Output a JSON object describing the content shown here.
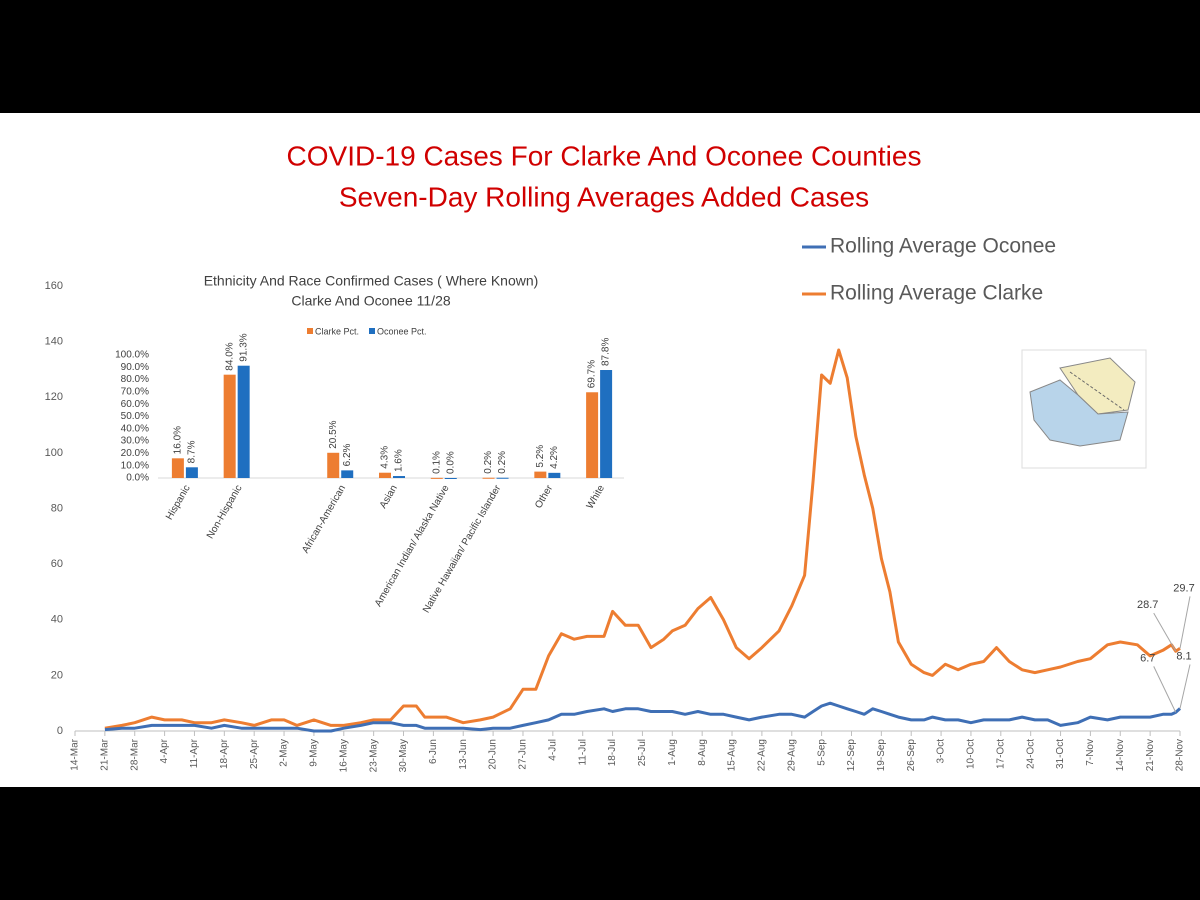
{
  "chart_data": [
    {
      "type": "line",
      "title": "COVID-19 Cases For Clarke And Oconee Counties",
      "subtitle": "Seven-Day Rolling Averages Added Cases",
      "x": [
        "21-Mar",
        "25-Mar",
        "28-Mar",
        "1-Apr",
        "4-Apr",
        "8-Apr",
        "11-Apr",
        "15-Apr",
        "18-Apr",
        "22-Apr",
        "25-Apr",
        "29-Apr",
        "2-May",
        "5-May",
        "9-May",
        "13-May",
        "16-May",
        "20-May",
        "23-May",
        "27-May",
        "30-May",
        "2-Jun",
        "4-Jun",
        "9-Jun",
        "13-Jun",
        "17-Jun",
        "20-Jun",
        "24-Jun",
        "27-Jun",
        "30-Jun",
        "3-Jul",
        "6-Jul",
        "9-Jul",
        "12-Jul",
        "16-Jul",
        "18-Jul",
        "21-Jul",
        "24-Jul",
        "27-Jul",
        "30-Jul",
        "1-Aug",
        "4-Aug",
        "7-Aug",
        "10-Aug",
        "13-Aug",
        "16-Aug",
        "19-Aug",
        "22-Aug",
        "26-Aug",
        "29-Aug",
        "1-Sep",
        "3-Sep",
        "5-Sep",
        "7-Sep",
        "9-Sep",
        "11-Sep",
        "13-Sep",
        "15-Sep",
        "17-Sep",
        "19-Sep",
        "21-Sep",
        "23-Sep",
        "26-Sep",
        "29-Sep",
        "1-Oct",
        "4-Oct",
        "7-Oct",
        "10-Oct",
        "13-Oct",
        "16-Oct",
        "19-Oct",
        "22-Oct",
        "25-Oct",
        "28-Oct",
        "31-Oct",
        "4-Nov",
        "7-Nov",
        "11-Nov",
        "14-Nov",
        "18-Nov",
        "21-Nov",
        "24-Nov",
        "26-Nov",
        "27-Nov",
        "28-Nov"
      ],
      "series": [
        {
          "name": "Rolling Average Oconee",
          "color": "#3f6fb5",
          "values": [
            0.5,
            1,
            1,
            2,
            2,
            2,
            2,
            1,
            2,
            1,
            1,
            1,
            1,
            1,
            0,
            0,
            1,
            2,
            3,
            3,
            2,
            2,
            1,
            1,
            1,
            0.5,
            1,
            1,
            2,
            3,
            4,
            6,
            6,
            7,
            8,
            7,
            8,
            8,
            7,
            7,
            7,
            6,
            7,
            6,
            6,
            5,
            4,
            5,
            6,
            6,
            5,
            7,
            9,
            10,
            9,
            8,
            7,
            6,
            8,
            7,
            6,
            5,
            4,
            4,
            5,
            4,
            4,
            3,
            4,
            4,
            4,
            5,
            4,
            4,
            2,
            3,
            5,
            4,
            5,
            5,
            5,
            6,
            6,
            6.7,
            8.1
          ],
          "value_labels": [
            null,
            null,
            null,
            null,
            null,
            null,
            null,
            null,
            null,
            null,
            null,
            null,
            null,
            null,
            null,
            null,
            null,
            null,
            null,
            null,
            null,
            null,
            null,
            null,
            null,
            null,
            null,
            null,
            null,
            null,
            null,
            null,
            null,
            null,
            null,
            null,
            null,
            null,
            null,
            null,
            null,
            null,
            null,
            null,
            null,
            null,
            null,
            null,
            null,
            null,
            null,
            null,
            null,
            null,
            null,
            null,
            null,
            null,
            null,
            null,
            null,
            null,
            null,
            null,
            null,
            null,
            null,
            null,
            null,
            null,
            null,
            null,
            null,
            null,
            null,
            null,
            null,
            null,
            null,
            null,
            null,
            null,
            null,
            "6.7",
            "8.1"
          ]
        },
        {
          "name": "Rolling Average Clarke",
          "color": "#ed7d31",
          "values": [
            1,
            2,
            3,
            5,
            4,
            4,
            3,
            3,
            4,
            3,
            2,
            4,
            4,
            2,
            4,
            2,
            2,
            3,
            4,
            4,
            9,
            9,
            5,
            5,
            3,
            4,
            5,
            8,
            15,
            15,
            27,
            35,
            33,
            34,
            34,
            43,
            38,
            38,
            30,
            33,
            36,
            38,
            44,
            48,
            40,
            30,
            26,
            30,
            36,
            45,
            56,
            90,
            128,
            125,
            137,
            127,
            106,
            92,
            80,
            62,
            50,
            32,
            24,
            21,
            20,
            24,
            22,
            24,
            25,
            30,
            25,
            22,
            21,
            22,
            23,
            25,
            26,
            31,
            32,
            31,
            27,
            29,
            31,
            28.7,
            29.7
          ],
          "value_labels": [
            null,
            null,
            null,
            null,
            null,
            null,
            null,
            null,
            null,
            null,
            null,
            null,
            null,
            null,
            null,
            null,
            null,
            null,
            null,
            null,
            null,
            null,
            null,
            null,
            null,
            null,
            null,
            null,
            null,
            null,
            null,
            null,
            null,
            null,
            null,
            null,
            null,
            null,
            null,
            null,
            null,
            null,
            null,
            null,
            null,
            null,
            null,
            null,
            null,
            null,
            null,
            null,
            null,
            null,
            null,
            null,
            null,
            null,
            null,
            null,
            null,
            null,
            null,
            null,
            null,
            null,
            null,
            null,
            null,
            null,
            null,
            null,
            null,
            null,
            null,
            null,
            null,
            null,
            null,
            null,
            null,
            null,
            null,
            "28.7",
            "29.7"
          ]
        }
      ],
      "ylim": [
        0,
        160
      ],
      "yticks": [
        0,
        20,
        40,
        60,
        80,
        100,
        120,
        140,
        160
      ],
      "xticks": [
        "14-Mar",
        "21-Mar",
        "28-Mar",
        "4-Apr",
        "11-Apr",
        "18-Apr",
        "25-Apr",
        "2-May",
        "9-May",
        "16-May",
        "23-May",
        "30-May",
        "6-Jun",
        "13-Jun",
        "20-Jun",
        "27-Jun",
        "4-Jul",
        "11-Jul",
        "18-Jul",
        "25-Jul",
        "1-Aug",
        "8-Aug",
        "15-Aug",
        "22-Aug",
        "29-Aug",
        "5-Sep",
        "12-Sep",
        "19-Sep",
        "26-Sep",
        "3-Oct",
        "10-Oct",
        "17-Oct",
        "24-Oct",
        "31-Oct",
        "7-Nov",
        "14-Nov",
        "21-Nov",
        "28-Nov"
      ],
      "grid": false,
      "legend": "top-right"
    },
    {
      "type": "bar",
      "title": "Ethnicity And Race  Confirmed Cases ( Where Known)",
      "subtitle": "Clarke And Oconee 11/28",
      "categories": [
        "Hispanic",
        "Non-Hispanic",
        null,
        "African-American",
        "Asian",
        "American Indian/ Alaska Native",
        "Native Hawaiian/ Pacific Islander",
        "Other",
        "White"
      ],
      "series": [
        {
          "name": "Clarke Pct.",
          "color": "#ed7d31",
          "values": [
            16.0,
            84.0,
            null,
            20.5,
            4.3,
            0.1,
            0.2,
            5.2,
            69.7
          ],
          "value_labels": [
            "16.0%",
            "84.0%",
            null,
            "20.5%",
            "4.3%",
            "0.1%",
            "0.2%",
            "5.2%",
            "69.7%"
          ]
        },
        {
          "name": "Oconee Pct.",
          "color": "#1f6fc0",
          "values": [
            8.7,
            91.3,
            null,
            6.2,
            1.6,
            0.0,
            0.2,
            4.2,
            87.8
          ],
          "value_labels": [
            "8.7%",
            "91.3%",
            null,
            "6.2%",
            "1.6%",
            "0.0%",
            "0.2%",
            "4.2%",
            "87.8%"
          ]
        }
      ],
      "ylim": [
        0,
        100
      ],
      "yticks": [
        {
          "value": 0,
          "label": "0.0%"
        },
        {
          "value": 10,
          "label": "10.0%"
        },
        {
          "value": 20,
          "label": "20.0%"
        },
        {
          "value": 30,
          "label": "30.0%"
        },
        {
          "value": 40,
          "label": "40.0%"
        },
        {
          "value": 50,
          "label": "50.0%"
        },
        {
          "value": 60,
          "label": "60.0%"
        },
        {
          "value": 70,
          "label": "70.0%"
        },
        {
          "value": 80,
          "label": "80.0%"
        },
        {
          "value": 90,
          "label": "90.0%"
        },
        {
          "value": 100,
          "label": "100.0%"
        }
      ],
      "grid": false,
      "legend": "top"
    }
  ]
}
